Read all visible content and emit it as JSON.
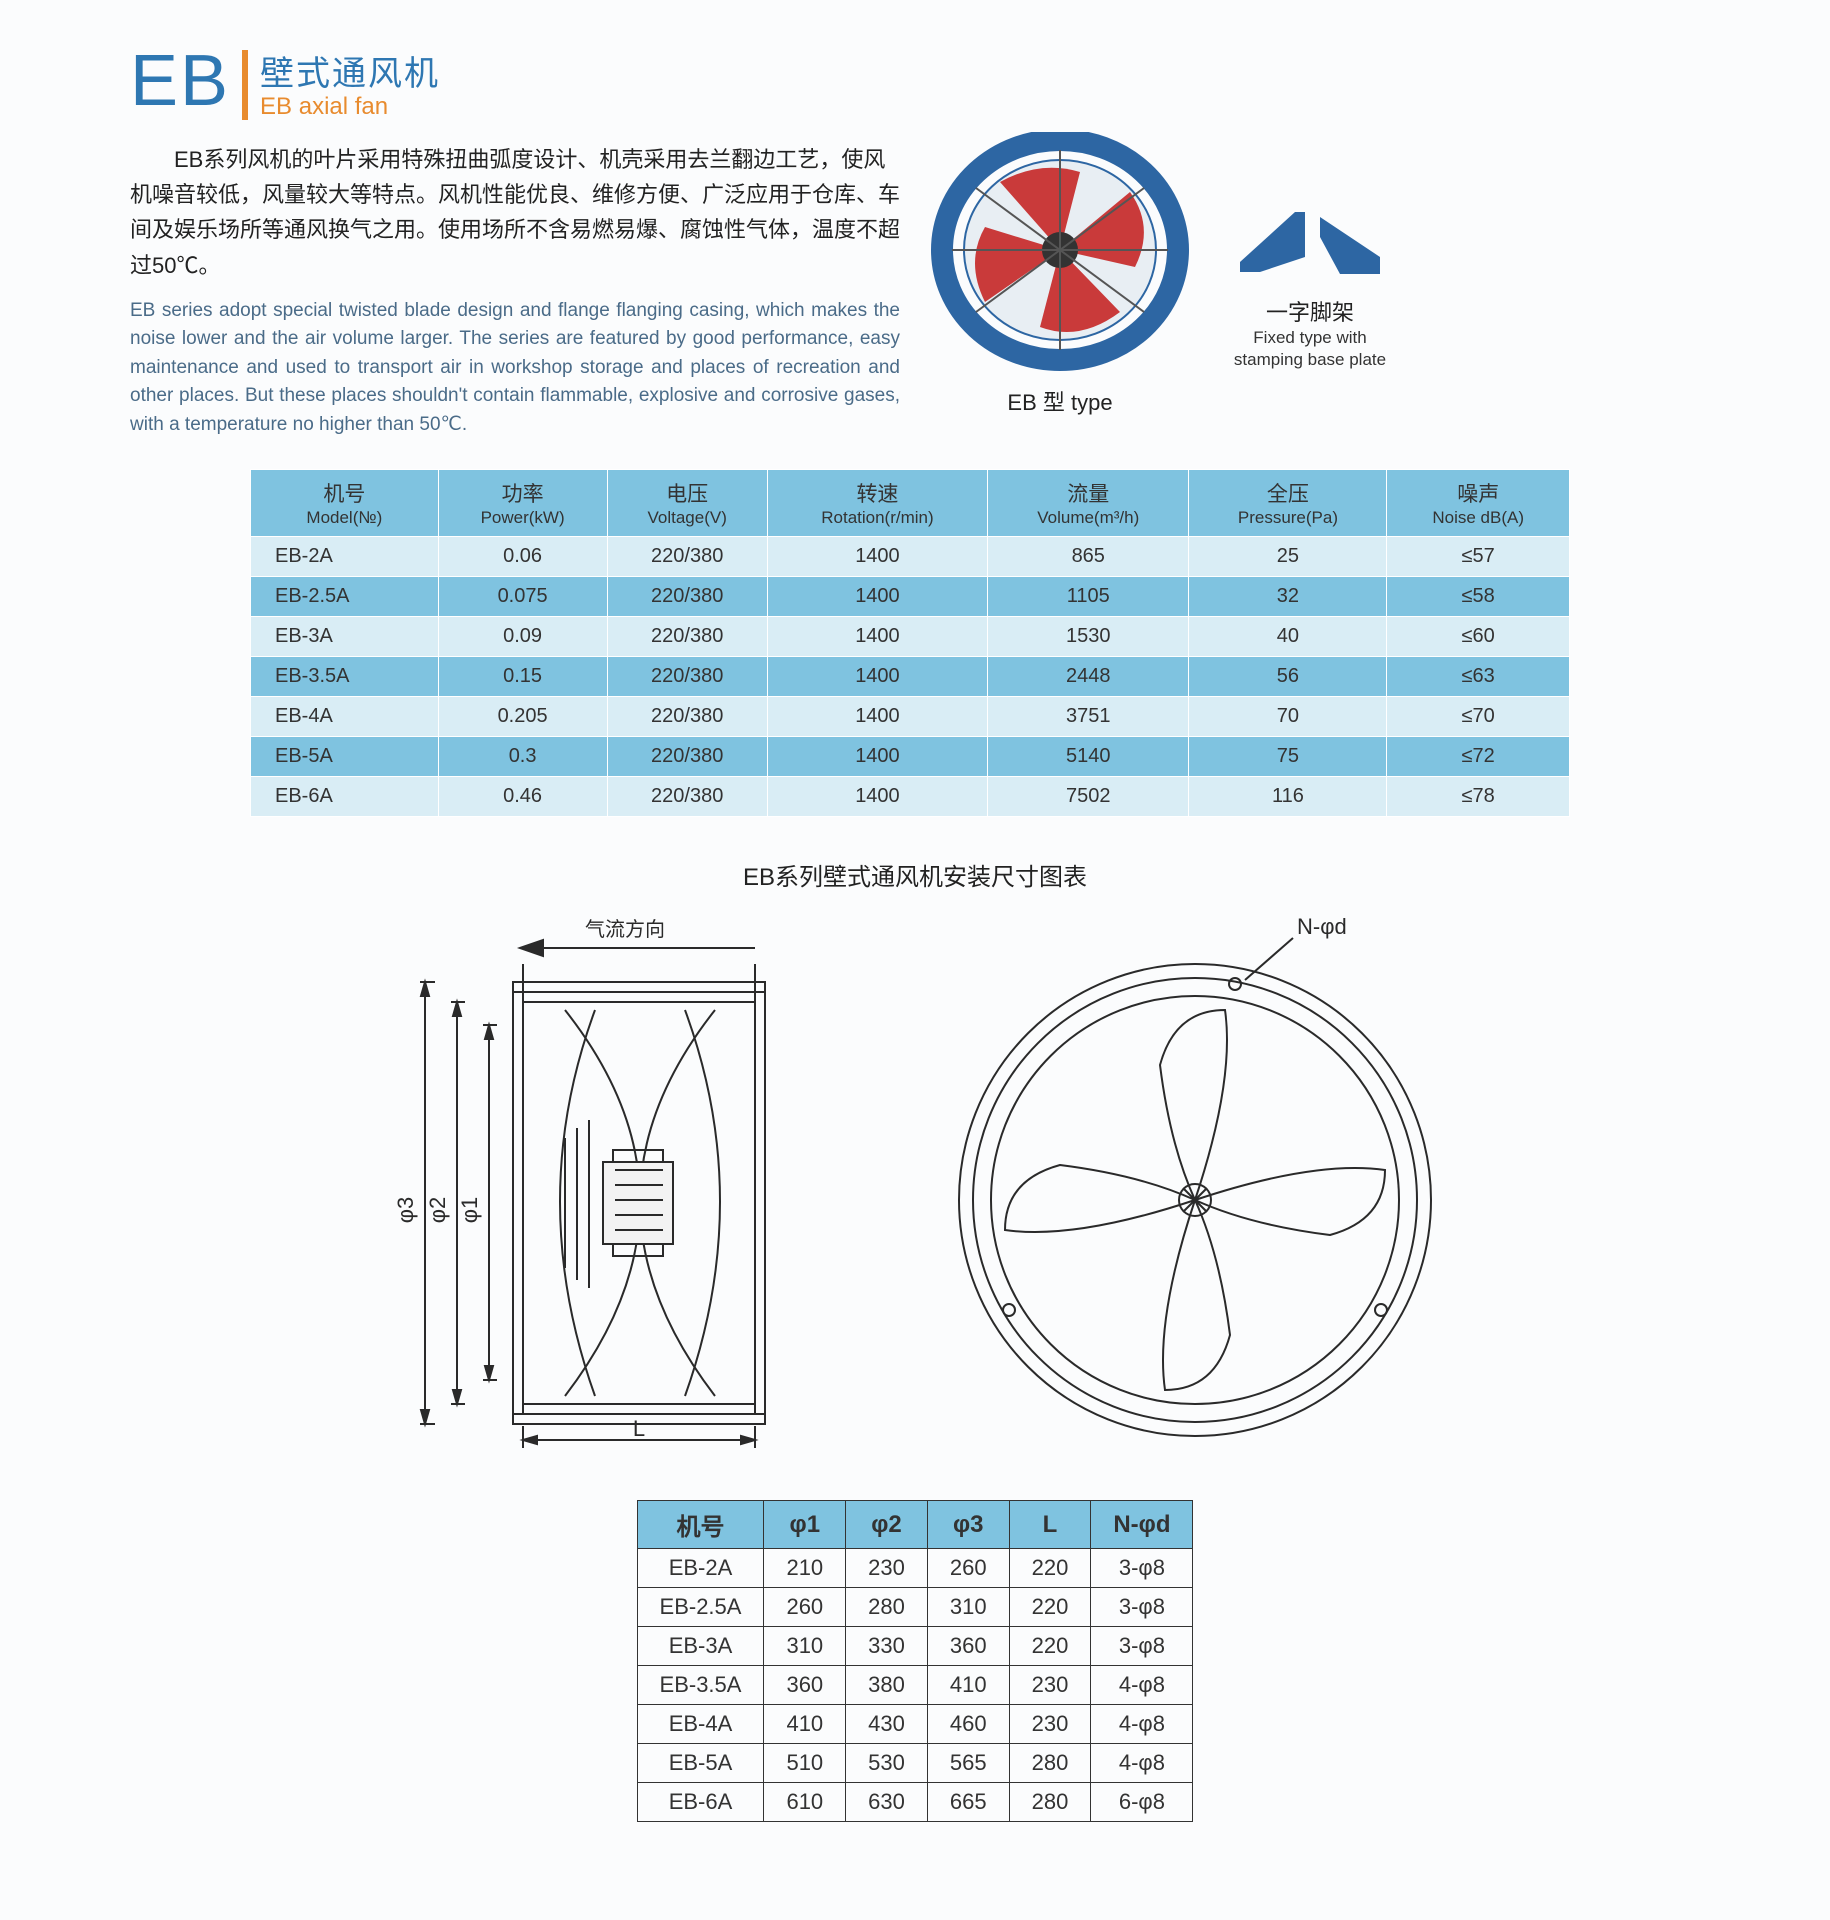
{
  "title": {
    "badge": "EB",
    "cn": "壁式通风机",
    "en": "EB axial fan"
  },
  "intro": {
    "cn": "EB系列风机的叶片采用特殊扭曲弧度设计、机壳采用去兰翻边工艺，使风机噪音较低，风量较大等特点。风机性能优良、维修方便、广泛应用于仓库、车间及娱乐场所等通风换气之用。使用场所不含易燃易爆、腐蚀性气体，温度不超过50℃。",
    "en": "EB series adopt special twisted blade design and flange flanging casing, which makes the noise lower and the air volume larger. The series are featured by good performance, easy maintenance and used to transport air in workshop storage and places of recreation and other places. But these places shouldn't contain flammable,  explosive and corrosive gases, with a temperature no higher than 50℃."
  },
  "images": {
    "fan_caption": "EB 型 type",
    "bracket_cn": "一字脚架",
    "bracket_en1": "Fixed type with",
    "bracket_en2": "stamping base plate",
    "fan_colors": {
      "casing": "#2d66a3",
      "blade": "#c93a3a",
      "hub": "#333"
    },
    "bracket_color": "#2d66a3"
  },
  "spec": {
    "headers": [
      {
        "cn": "机号",
        "en": "Model(№)"
      },
      {
        "cn": "功率",
        "en": "Power(kW)"
      },
      {
        "cn": "电压",
        "en": "Voltage(V)"
      },
      {
        "cn": "转速",
        "en": "Rotation(r/min)"
      },
      {
        "cn": "流量",
        "en": "Volume(m³/h)"
      },
      {
        "cn": "全压",
        "en": "Pressure(Pa)"
      },
      {
        "cn": "噪声",
        "en": "Noise dB(A)"
      }
    ],
    "rows": [
      [
        "EB-2A",
        "0.06",
        "220/380",
        "1400",
        "865",
        "25",
        "≤57"
      ],
      [
        "EB-2.5A",
        "0.075",
        "220/380",
        "1400",
        "1105",
        "32",
        "≤58"
      ],
      [
        "EB-3A",
        "0.09",
        "220/380",
        "1400",
        "1530",
        "40",
        "≤60"
      ],
      [
        "EB-3.5A",
        "0.15",
        "220/380",
        "1400",
        "2448",
        "56",
        "≤63"
      ],
      [
        "EB-4A",
        "0.205",
        "220/380",
        "1400",
        "3751",
        "70",
        "≤70"
      ],
      [
        "EB-5A",
        "0.3",
        "220/380",
        "1400",
        "5140",
        "75",
        "≤72"
      ],
      [
        "EB-6A",
        "0.46",
        "220/380",
        "1400",
        "7502",
        "116",
        "≤78"
      ]
    ],
    "colors": {
      "header_bg": "#7fc3e0",
      "row_a": "#d9edf5",
      "row_b": "#7fc3e0"
    }
  },
  "diagrams": {
    "title": "EB系列壁式通风机安装尺寸图表",
    "airflow_label": "气流方向",
    "hole_label": "N-φd",
    "dim_labels": {
      "phi1": "φ1",
      "phi2": "φ2",
      "phi3": "φ3",
      "L": "L"
    },
    "line_color": "#2a2a2a"
  },
  "dims": {
    "headers": [
      "机号",
      "φ1",
      "φ2",
      "φ3",
      "L",
      "N-φd"
    ],
    "rows": [
      [
        "EB-2A",
        "210",
        "230",
        "260",
        "220",
        "3-φ8"
      ],
      [
        "EB-2.5A",
        "260",
        "280",
        "310",
        "220",
        "3-φ8"
      ],
      [
        "EB-3A",
        "310",
        "330",
        "360",
        "220",
        "3-φ8"
      ],
      [
        "EB-3.5A",
        "360",
        "380",
        "410",
        "230",
        "4-φ8"
      ],
      [
        "EB-4A",
        "410",
        "430",
        "460",
        "230",
        "4-φ8"
      ],
      [
        "EB-5A",
        "510",
        "530",
        "565",
        "280",
        "4-φ8"
      ],
      [
        "EB-6A",
        "610",
        "630",
        "665",
        "280",
        "6-φ8"
      ]
    ]
  }
}
